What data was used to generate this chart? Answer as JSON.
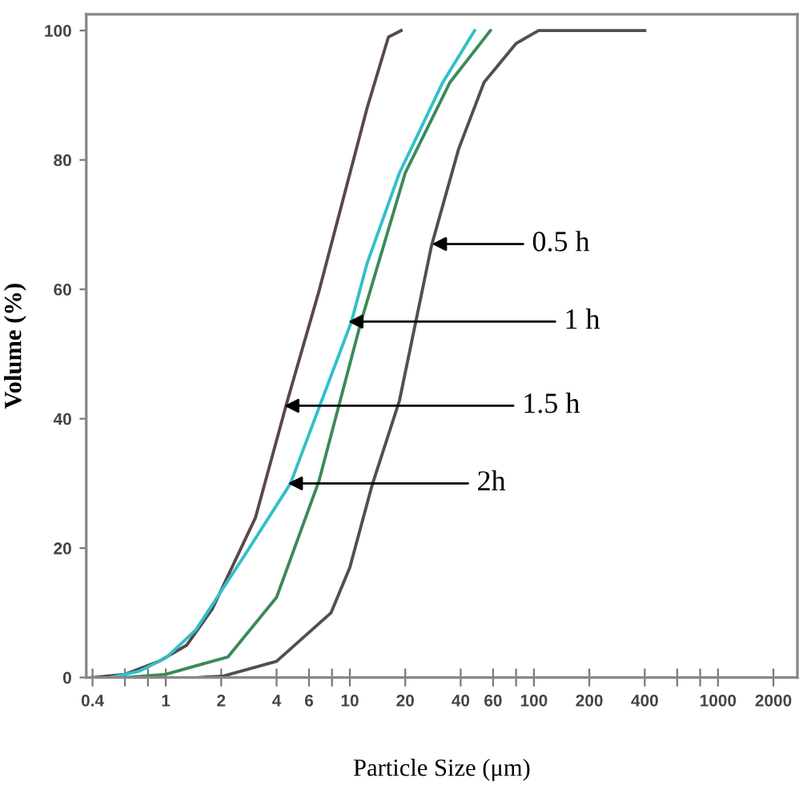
{
  "chart_data": {
    "type": "line",
    "xlabel": "Particle Size (μm)",
    "ylabel": "Volume (%)",
    "log": "x",
    "xlim": [
      0.37,
      2700
    ],
    "ylim": [
      0,
      102.5
    ],
    "xticks": [
      0.4,
      {
        "value": 0.6,
        "label": null
      },
      {
        "value": 0.8,
        "label": null
      },
      1,
      2,
      4,
      6,
      {
        "value": 8,
        "label": null
      },
      10,
      20,
      40,
      60,
      {
        "value": 80,
        "label": null
      },
      100,
      200,
      400,
      {
        "value": 600,
        "label": null
      },
      {
        "value": 800,
        "label": null
      },
      1000,
      2000
    ],
    "yticks": [
      0,
      20,
      40,
      60,
      80,
      100
    ],
    "grid": false,
    "legend": false,
    "marker": "none",
    "line_style": "solid",
    "series": [
      {
        "color": "#5a4848",
        "x": [
          0.4,
          0.6,
          0.92,
          1.3,
          1.79,
          3.07,
          4.58,
          6.84,
          12.4,
          16.2,
          19
        ],
        "values": [
          0,
          0.5,
          2.5,
          5,
          10.6,
          24.7,
          42.8,
          60,
          88,
          99,
          100
        ]
      },
      {
        "color": "#30c0c8",
        "x": [
          0.5,
          0.72,
          1.0,
          1.46,
          2.67,
          4.76,
          10.2,
          12.4,
          18.6,
          32,
          47.6
        ],
        "values": [
          0,
          1,
          3,
          7.4,
          18.8,
          30,
          55,
          64,
          78,
          92,
          100
        ]
      },
      {
        "color": "#3c8a58",
        "x": [
          0.6,
          1,
          2.18,
          4.0,
          6.8,
          11.5,
          20,
          35,
          58
        ],
        "values": [
          0,
          0.5,
          3.2,
          12.4,
          30.4,
          55,
          78,
          92,
          100
        ]
      },
      {
        "color": "#505050",
        "x": [
          1.5,
          2.05,
          4,
          7.9,
          10,
          13.2,
          18.6,
          27.8,
          39,
          53.6,
          80,
          106,
          400
        ],
        "values": [
          0,
          0.2,
          2.5,
          10,
          17,
          29.7,
          42.8,
          66.8,
          81.7,
          92,
          98,
          100,
          100
        ]
      }
    ],
    "annotations": [
      {
        "text": "0.5 h",
        "x": 27.9,
        "y": 67
      },
      {
        "text": "1 h",
        "x": 9.8,
        "y": 55
      },
      {
        "text": "1.5 h",
        "x": 4.4,
        "y": 42
      },
      {
        "text": "2h",
        "x": 4.6,
        "y": 30
      }
    ]
  }
}
